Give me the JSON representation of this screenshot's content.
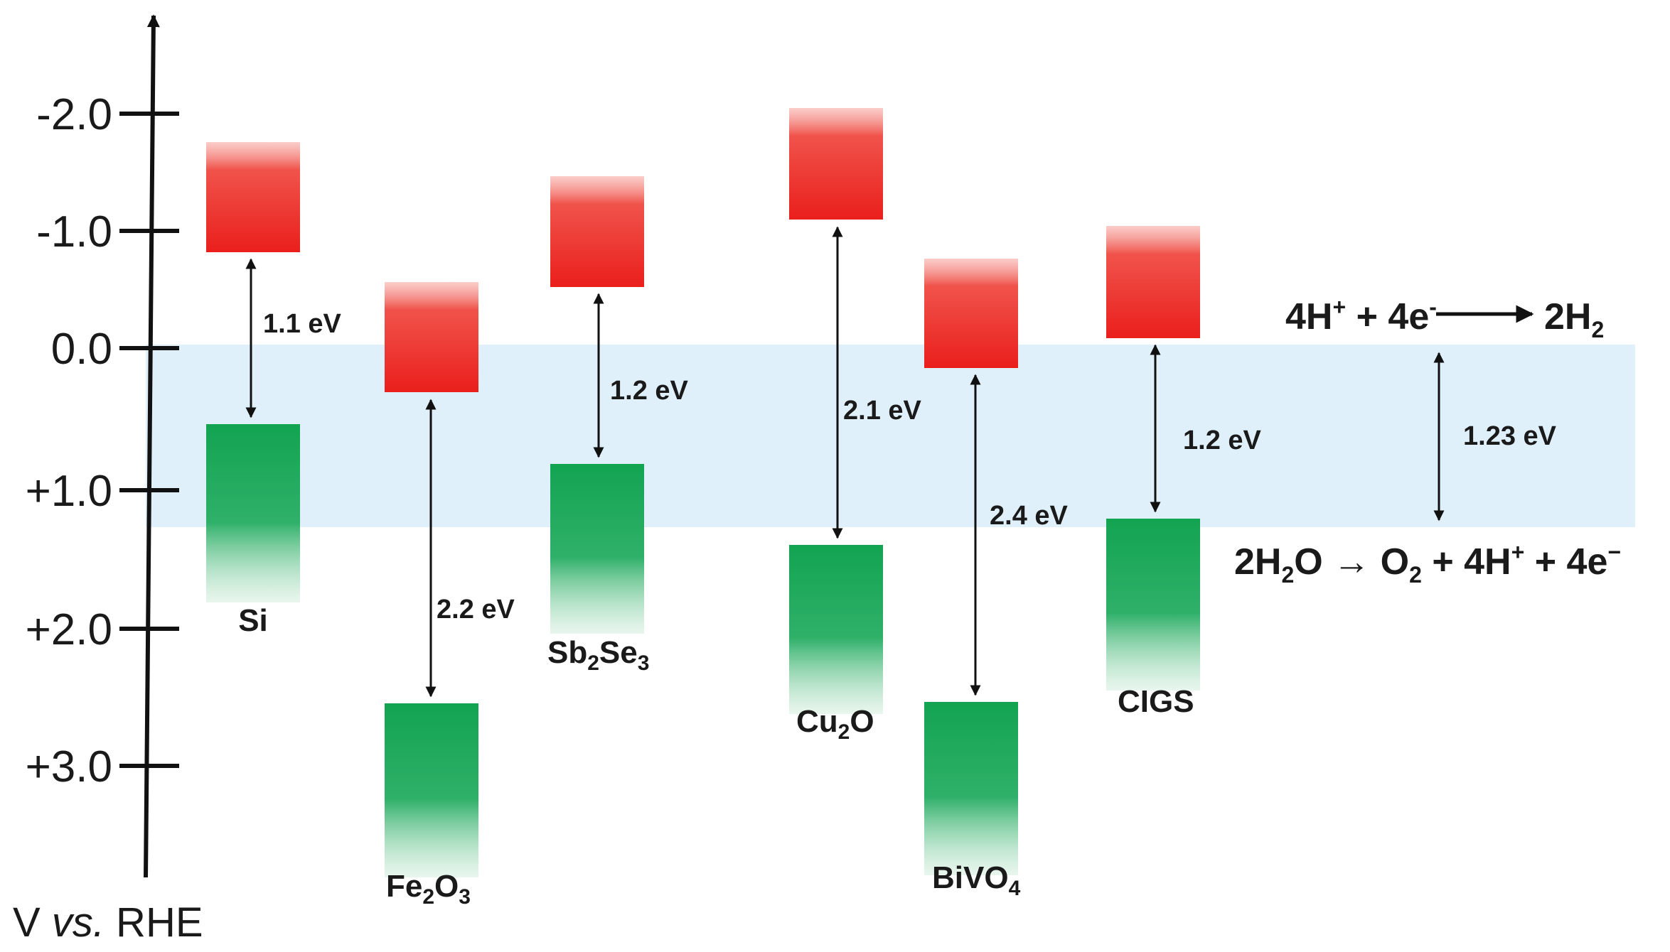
{
  "colors": {
    "conduction_band": "#ef2b24",
    "valence_band": "#17a554",
    "water_window": "#dff0fb",
    "axis": "#111111"
  },
  "axis": {
    "title_prefix": "V ",
    "title_italic": "vs.",
    "title_suffix": " RHE",
    "ticks": [
      "-2.0",
      "-1.0",
      "0.0",
      "+1.0",
      "+2.0",
      "+3.0"
    ]
  },
  "materials": [
    {
      "id": "si",
      "name": "Si",
      "gap": "1.1 eV"
    },
    {
      "id": "fe2o3",
      "name_parts": [
        "Fe",
        "2",
        "O",
        "3"
      ],
      "gap": "2.2 eV"
    },
    {
      "id": "sb2se3",
      "name_parts": [
        "Sb",
        "2",
        "Se",
        "3"
      ],
      "gap": "1.2 eV"
    },
    {
      "id": "cu2o",
      "name_parts": [
        "Cu",
        "2",
        "O"
      ],
      "gap": "2.1 eV"
    },
    {
      "id": "bivo4",
      "name_parts": [
        "BiVO",
        "4"
      ],
      "gap": "2.4 eV"
    },
    {
      "id": "cigs",
      "name": "CIGS",
      "gap": "1.2 eV"
    }
  ],
  "water_splitting": {
    "gap": "1.23 eV",
    "her": {
      "lhs_a": "4H",
      "lhs_a_sup": "+",
      "lhs_b": " + 4e",
      "lhs_b_sup": "-",
      "rhs": "2H",
      "rhs_sub": "2"
    },
    "oer": {
      "a": "2H",
      "a_sub": "2",
      "b": "O → O",
      "b_sub": "2",
      "c": " + 4H",
      "c_sup": "+",
      "d": " + 4e",
      "d_sup": "−"
    }
  }
}
